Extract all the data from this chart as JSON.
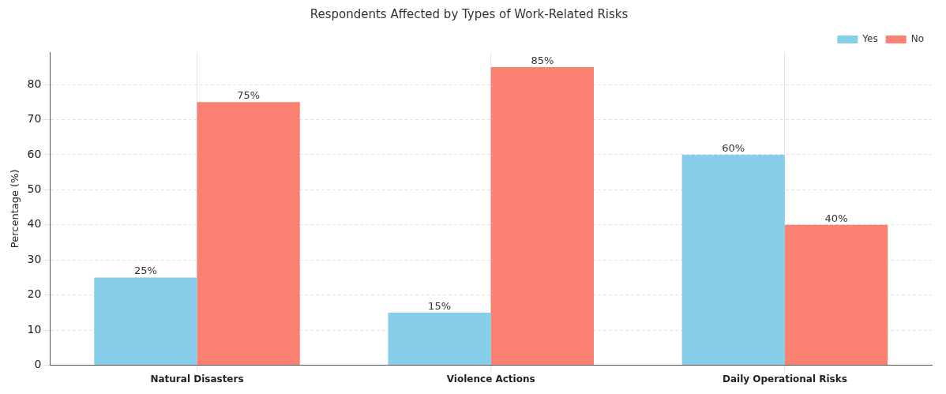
{
  "chart_data": {
    "type": "bar",
    "title": "Respondents Affected by Types of Work-Related Risks",
    "ylabel": "Percentage (%)",
    "categories": [
      "Natural Disasters",
      "Violence Actions",
      "Daily Operational Risks"
    ],
    "series": [
      {
        "name": "Yes",
        "color": "#87ceeb",
        "values": [
          25,
          15,
          60
        ],
        "value_labels": [
          "25%",
          "15%",
          "60%"
        ]
      },
      {
        "name": "No",
        "color": "#fa8072",
        "values": [
          75,
          85,
          40
        ],
        "value_labels": [
          "75%",
          "85%",
          "40%"
        ]
      }
    ],
    "ylim": [
      0,
      89.25
    ],
    "yticks": [
      0,
      10,
      20,
      30,
      40,
      50,
      60,
      70,
      80
    ],
    "grid": true,
    "legend": "top right"
  }
}
